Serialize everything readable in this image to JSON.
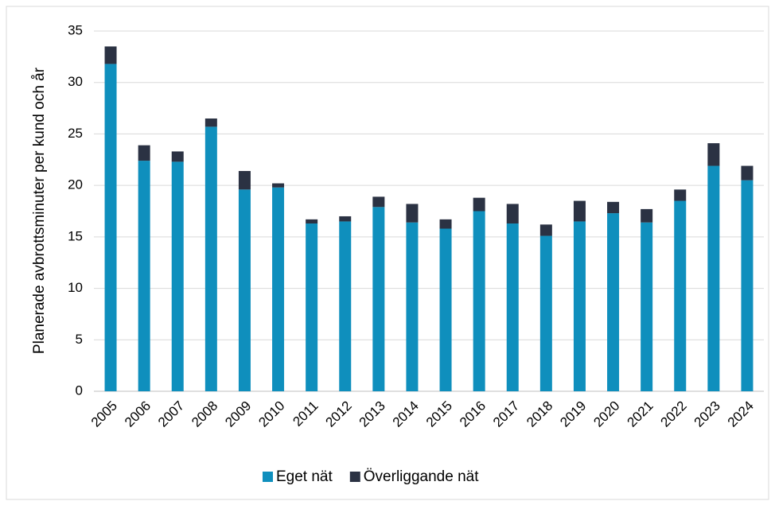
{
  "chart_data": {
    "type": "stacked_bar",
    "y_label": "Planerade avbrottsminuter per kund och år",
    "categories": [
      "2005",
      "2006",
      "2007",
      "2008",
      "2009",
      "2010",
      "2011",
      "2012",
      "2013",
      "2014",
      "2015",
      "2016",
      "2017",
      "2018",
      "2019",
      "2020",
      "2021",
      "2022",
      "2023",
      "2024"
    ],
    "series": [
      {
        "name": "Eget nät",
        "color": "#0f8fbd",
        "values": [
          31.8,
          22.4,
          22.3,
          25.7,
          19.6,
          19.8,
          16.3,
          16.5,
          17.9,
          16.4,
          15.8,
          17.5,
          16.3,
          15.1,
          16.5,
          17.3,
          16.4,
          18.5,
          21.9,
          20.5
        ]
      },
      {
        "name": "Överliggande nät",
        "color": "#2b3243",
        "values": [
          1.7,
          1.5,
          1.0,
          0.8,
          1.8,
          0.4,
          0.4,
          0.5,
          1.0,
          1.8,
          0.9,
          1.3,
          1.9,
          1.1,
          2.0,
          1.1,
          1.3,
          1.1,
          2.2,
          1.4
        ]
      }
    ],
    "ylim": [
      0,
      35
    ],
    "yticks": [
      0,
      5,
      10,
      15,
      20,
      25,
      30,
      35
    ],
    "grid": true,
    "legend": "bottom"
  }
}
